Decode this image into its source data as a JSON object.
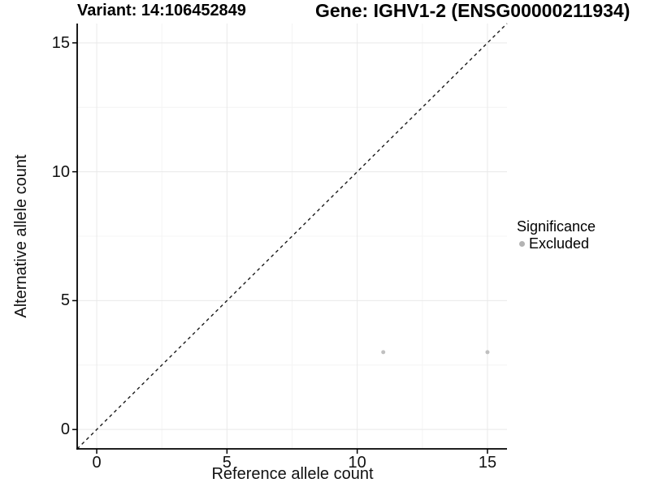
{
  "chart_data": {
    "type": "scatter",
    "titles": {
      "left": "Variant: 14:106452849",
      "right": "Gene: IGHV1-2 (ENSG00000211934)"
    },
    "xlabel": "Reference allele count",
    "ylabel": "Alternative allele count",
    "x_ticks": [
      0,
      5,
      10,
      15
    ],
    "y_ticks": [
      0,
      5,
      10,
      15
    ],
    "xlim": [
      -0.75,
      15.75
    ],
    "ylim": [
      -0.75,
      15.75
    ],
    "grid": {
      "major": true,
      "minor": true,
      "major_color": "#e9e9e9",
      "minor_color": "#f4f4f4"
    },
    "reference_line": {
      "slope": 1,
      "intercept": 0,
      "style": "dashed",
      "color": "#1a1a1a"
    },
    "series": [
      {
        "name": "Excluded",
        "color": "#c0c0c0",
        "points": [
          {
            "x": 11,
            "y": 3
          },
          {
            "x": 15,
            "y": 3
          }
        ]
      }
    ],
    "legend": {
      "title": "Significance",
      "position": "right",
      "items": [
        {
          "label": "Excluded",
          "color": "#b3b3b3"
        }
      ]
    }
  }
}
